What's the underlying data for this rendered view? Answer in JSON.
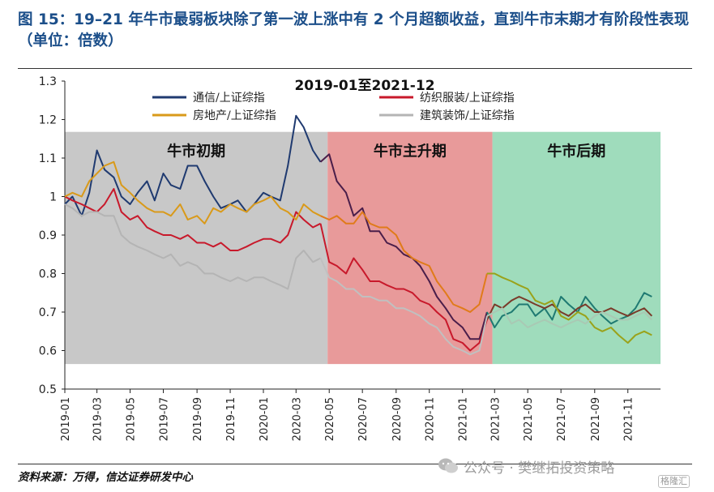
{
  "figure_title": "图 15：19–21 年牛市最弱板块除了第一波上涨中有 2 个月超额收益，直到牛市末期才有阶段性表现（单位：倍数）",
  "source_note": "资料来源：万得，信达证券研发中心",
  "watermark": {
    "text": "公众号 · 樊继拓投资策略",
    "badge": "格隆汇",
    "icon": "wechat-icon"
  },
  "chart_data": {
    "type": "line",
    "title": "2019-01至2021-12",
    "ylim": [
      0.5,
      1.3
    ],
    "yticks": [
      "1.3",
      "1.2",
      "1.1",
      "1",
      "0.9",
      "0.8",
      "0.7",
      "0.6",
      "0.5"
    ],
    "xticks": [
      "2019-01",
      "2019-03",
      "2019-05",
      "2019-07",
      "2019-09",
      "2019-11",
      "2020-01",
      "2020-03",
      "2020-05",
      "2020-07",
      "2020-09",
      "2020-11",
      "2021-01",
      "2021-03",
      "2021-05",
      "2021-07",
      "2021-09",
      "2021-11"
    ],
    "x_start": "2019-01",
    "x_end": "2021-12",
    "grid": false,
    "legend_position": "top",
    "phases": [
      {
        "label": "牛市初期",
        "start": "2019-01",
        "end": "2020-04-28",
        "color": "#c8c8c8"
      },
      {
        "label": "牛市主升期",
        "start": "2020-04-28",
        "end": "2021-02-25",
        "color": "#e89a9a"
      },
      {
        "label": "牛市后期",
        "start": "2021-02-25",
        "end": "2021-12-31",
        "color": "#9fdcbc"
      }
    ],
    "phase_band_range": [
      0.565,
      1.168
    ],
    "series": [
      {
        "name": "通信/上证综指",
        "color_before": "#1f3a70",
        "color_mid": "#4a1e4a",
        "color_after": "#1f7a72",
        "dates": [
          "2019-01",
          "2019-01-15",
          "2019-02",
          "2019-02-15",
          "2019-03",
          "2019-03-15",
          "2019-04",
          "2019-04-15",
          "2019-05",
          "2019-05-15",
          "2019-06",
          "2019-06-15",
          "2019-07",
          "2019-07-15",
          "2019-08",
          "2019-08-15",
          "2019-09",
          "2019-09-15",
          "2019-10",
          "2019-10-15",
          "2019-11",
          "2019-11-15",
          "2019-12",
          "2019-12-15",
          "2020-01",
          "2020-01-15",
          "2020-02",
          "2020-02-15",
          "2020-03",
          "2020-03-15",
          "2020-04",
          "2020-04-15",
          "2020-05",
          "2020-05-15",
          "2020-06",
          "2020-06-15",
          "2020-07",
          "2020-07-15",
          "2020-08",
          "2020-08-15",
          "2020-09",
          "2020-09-15",
          "2020-10",
          "2020-10-15",
          "2020-11",
          "2020-11-15",
          "2020-12",
          "2020-12-15",
          "2021-01",
          "2021-01-15",
          "2021-02",
          "2021-02-15",
          "2021-03",
          "2021-03-15",
          "2021-04",
          "2021-04-15",
          "2021-05",
          "2021-05-15",
          "2021-06",
          "2021-06-15",
          "2021-07",
          "2021-07-15",
          "2021-08",
          "2021-08-15",
          "2021-09",
          "2021-09-15",
          "2021-10",
          "2021-10-15",
          "2021-11",
          "2021-11-15",
          "2021-12",
          "2021-12-15"
        ],
        "values": [
          0.98,
          1.0,
          0.95,
          1.01,
          1.12,
          1.07,
          1.05,
          1.0,
          0.98,
          1.01,
          1.04,
          0.99,
          1.06,
          1.03,
          1.02,
          1.08,
          1.08,
          1.04,
          1.0,
          0.97,
          0.98,
          0.99,
          0.96,
          0.98,
          1.01,
          1.0,
          0.99,
          1.08,
          1.21,
          1.18,
          1.12,
          1.09,
          1.11,
          1.04,
          1.01,
          0.95,
          0.97,
          0.91,
          0.91,
          0.88,
          0.87,
          0.85,
          0.84,
          0.82,
          0.78,
          0.74,
          0.71,
          0.68,
          0.66,
          0.63,
          0.63,
          0.7,
          0.66,
          0.69,
          0.7,
          0.72,
          0.72,
          0.69,
          0.71,
          0.68,
          0.74,
          0.72,
          0.7,
          0.74,
          0.71,
          0.69,
          0.67,
          0.68,
          0.69,
          0.71,
          0.75,
          0.74
        ]
      },
      {
        "name": "纺织服装/上证综指",
        "color_before": "#c8192b",
        "color_mid": "#c8192b",
        "color_after": "#7a3b2a",
        "dates": [
          "2019-01",
          "2019-01-15",
          "2019-02",
          "2019-02-15",
          "2019-03",
          "2019-03-15",
          "2019-04",
          "2019-04-15",
          "2019-05",
          "2019-05-15",
          "2019-06",
          "2019-06-15",
          "2019-07",
          "2019-07-15",
          "2019-08",
          "2019-08-15",
          "2019-09",
          "2019-09-15",
          "2019-10",
          "2019-10-15",
          "2019-11",
          "2019-11-15",
          "2019-12",
          "2019-12-15",
          "2020-01",
          "2020-01-15",
          "2020-02",
          "2020-02-15",
          "2020-03",
          "2020-03-15",
          "2020-04",
          "2020-04-15",
          "2020-05",
          "2020-05-15",
          "2020-06",
          "2020-06-15",
          "2020-07",
          "2020-07-15",
          "2020-08",
          "2020-08-15",
          "2020-09",
          "2020-09-15",
          "2020-10",
          "2020-10-15",
          "2020-11",
          "2020-11-15",
          "2020-12",
          "2020-12-15",
          "2021-01",
          "2021-01-15",
          "2021-02",
          "2021-02-15",
          "2021-03",
          "2021-03-15",
          "2021-04",
          "2021-04-15",
          "2021-05",
          "2021-05-15",
          "2021-06",
          "2021-06-15",
          "2021-07",
          "2021-07-15",
          "2021-08",
          "2021-08-15",
          "2021-09",
          "2021-09-15",
          "2021-10",
          "2021-10-15",
          "2021-11",
          "2021-11-15",
          "2021-12",
          "2021-12-15"
        ],
        "values": [
          1.0,
          0.99,
          0.98,
          0.97,
          0.96,
          0.98,
          1.02,
          0.96,
          0.94,
          0.95,
          0.92,
          0.91,
          0.9,
          0.9,
          0.89,
          0.9,
          0.88,
          0.88,
          0.87,
          0.88,
          0.86,
          0.86,
          0.87,
          0.88,
          0.89,
          0.89,
          0.88,
          0.9,
          0.96,
          0.94,
          0.92,
          0.93,
          0.83,
          0.82,
          0.8,
          0.84,
          0.81,
          0.78,
          0.78,
          0.77,
          0.76,
          0.76,
          0.75,
          0.73,
          0.72,
          0.7,
          0.68,
          0.63,
          0.62,
          0.6,
          0.62,
          0.68,
          0.72,
          0.71,
          0.73,
          0.74,
          0.73,
          0.72,
          0.71,
          0.72,
          0.7,
          0.69,
          0.71,
          0.72,
          0.7,
          0.7,
          0.71,
          0.7,
          0.69,
          0.7,
          0.71,
          0.69
        ]
      },
      {
        "name": "房地产/上证综指",
        "color_before": "#d99a1a",
        "color_mid": "#e07b1a",
        "color_after": "#9aa21a",
        "dates": [
          "2019-01",
          "2019-01-15",
          "2019-02",
          "2019-02-15",
          "2019-03",
          "2019-03-15",
          "2019-04",
          "2019-04-15",
          "2019-05",
          "2019-05-15",
          "2019-06",
          "2019-06-15",
          "2019-07",
          "2019-07-15",
          "2019-08",
          "2019-08-15",
          "2019-09",
          "2019-09-15",
          "2019-10",
          "2019-10-15",
          "2019-11",
          "2019-11-15",
          "2019-12",
          "2019-12-15",
          "2020-01",
          "2020-01-15",
          "2020-02",
          "2020-02-15",
          "2020-03",
          "2020-03-15",
          "2020-04",
          "2020-04-15",
          "2020-05",
          "2020-05-15",
          "2020-06",
          "2020-06-15",
          "2020-07",
          "2020-07-15",
          "2020-08",
          "2020-08-15",
          "2020-09",
          "2020-09-15",
          "2020-10",
          "2020-10-15",
          "2020-11",
          "2020-11-15",
          "2020-12",
          "2020-12-15",
          "2021-01",
          "2021-01-15",
          "2021-02",
          "2021-02-15",
          "2021-03",
          "2021-03-15",
          "2021-04",
          "2021-04-15",
          "2021-05",
          "2021-05-15",
          "2021-06",
          "2021-06-15",
          "2021-07",
          "2021-07-15",
          "2021-08",
          "2021-08-15",
          "2021-09",
          "2021-09-15",
          "2021-10",
          "2021-10-15",
          "2021-11",
          "2021-11-15",
          "2021-12",
          "2021-12-15"
        ],
        "values": [
          1.0,
          1.01,
          1.0,
          1.04,
          1.06,
          1.08,
          1.09,
          1.03,
          1.01,
          0.99,
          0.97,
          0.96,
          0.96,
          0.95,
          0.98,
          0.94,
          0.95,
          0.93,
          0.97,
          0.96,
          0.98,
          0.97,
          0.96,
          0.98,
          0.99,
          1.0,
          0.97,
          0.96,
          0.94,
          0.98,
          0.96,
          0.95,
          0.94,
          0.95,
          0.93,
          0.93,
          0.96,
          0.93,
          0.92,
          0.92,
          0.9,
          0.86,
          0.84,
          0.83,
          0.82,
          0.78,
          0.75,
          0.72,
          0.71,
          0.7,
          0.72,
          0.8,
          0.8,
          0.79,
          0.78,
          0.77,
          0.76,
          0.73,
          0.72,
          0.73,
          0.69,
          0.68,
          0.7,
          0.69,
          0.66,
          0.65,
          0.66,
          0.64,
          0.62,
          0.64,
          0.65,
          0.64
        ]
      },
      {
        "name": "建筑装饰/上证综指",
        "color_before": "#b4b4b4",
        "color_mid": "#c0c0c0",
        "color_after": "#a9c9b4",
        "dates": [
          "2019-01",
          "2019-01-15",
          "2019-02",
          "2019-02-15",
          "2019-03",
          "2019-03-15",
          "2019-04",
          "2019-04-15",
          "2019-05",
          "2019-05-15",
          "2019-06",
          "2019-06-15",
          "2019-07",
          "2019-07-15",
          "2019-08",
          "2019-08-15",
          "2019-09",
          "2019-09-15",
          "2019-10",
          "2019-10-15",
          "2019-11",
          "2019-11-15",
          "2019-12",
          "2019-12-15",
          "2020-01",
          "2020-01-15",
          "2020-02",
          "2020-02-15",
          "2020-03",
          "2020-03-15",
          "2020-04",
          "2020-04-15",
          "2020-05",
          "2020-05-15",
          "2020-06",
          "2020-06-15",
          "2020-07",
          "2020-07-15",
          "2020-08",
          "2020-08-15",
          "2020-09",
          "2020-09-15",
          "2020-10",
          "2020-10-15",
          "2020-11",
          "2020-11-15",
          "2020-12",
          "2020-12-15",
          "2021-01",
          "2021-01-15",
          "2021-02",
          "2021-02-15",
          "2021-03",
          "2021-03-15",
          "2021-04",
          "2021-04-15",
          "2021-05",
          "2021-05-15",
          "2021-06",
          "2021-06-15",
          "2021-07",
          "2021-07-15",
          "2021-08",
          "2021-08-15",
          "2021-09",
          "2021-09-15",
          "2021-10",
          "2021-10-15",
          "2021-11",
          "2021-11-15",
          "2021-12",
          "2021-12-15"
        ],
        "values": [
          0.98,
          0.97,
          0.95,
          0.96,
          0.96,
          0.95,
          0.95,
          0.9,
          0.88,
          0.87,
          0.86,
          0.85,
          0.84,
          0.85,
          0.82,
          0.83,
          0.82,
          0.8,
          0.8,
          0.79,
          0.78,
          0.79,
          0.78,
          0.79,
          0.79,
          0.78,
          0.77,
          0.76,
          0.84,
          0.86,
          0.83,
          0.84,
          0.79,
          0.78,
          0.76,
          0.76,
          0.74,
          0.74,
          0.73,
          0.73,
          0.71,
          0.71,
          0.7,
          0.69,
          0.67,
          0.66,
          0.63,
          0.61,
          0.6,
          0.59,
          0.6,
          0.69,
          0.7,
          0.71,
          0.67,
          0.68,
          0.66,
          0.67,
          0.68,
          0.67,
          0.66,
          0.67,
          0.68,
          0.67,
          0.69,
          0.7,
          0.69,
          0.68,
          0.68,
          0.69,
          0.7,
          0.68
        ]
      }
    ]
  }
}
